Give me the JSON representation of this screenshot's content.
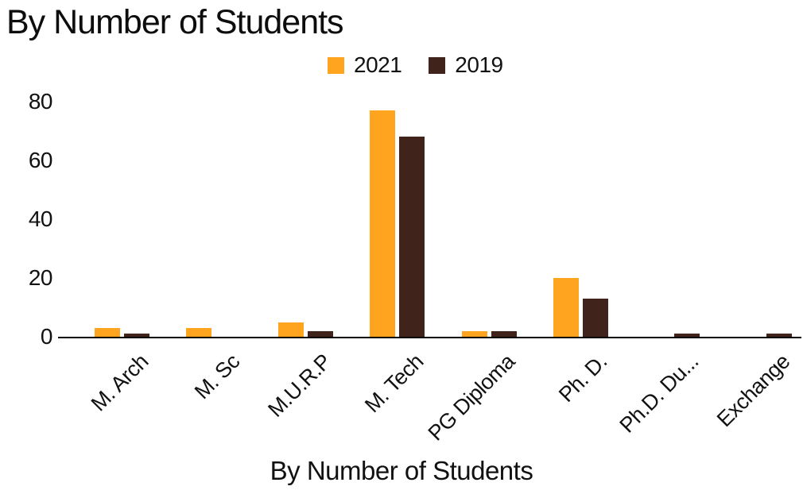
{
  "title": "By Number of Students",
  "legend": {
    "items": [
      {
        "label": "2021",
        "color": "#FFA41E"
      },
      {
        "label": "2019",
        "color": "#40231A"
      }
    ]
  },
  "x_axis_title": "By Number of Students",
  "chart_data": {
    "type": "bar",
    "title": "By Number of Students",
    "xlabel": "By Number of Students",
    "ylabel": "",
    "categories": [
      "M. Arch",
      "M. Sc",
      "M.U.R.P",
      "M. Tech",
      "PG Diploma",
      "Ph. D.",
      "Ph.D. Du...",
      "Exchange"
    ],
    "series": [
      {
        "name": "2021",
        "color": "#FFA41E",
        "values": [
          3,
          3,
          5,
          77,
          2,
          20,
          0,
          0
        ]
      },
      {
        "name": "2019",
        "color": "#40231A",
        "values": [
          1,
          0,
          2,
          68,
          2,
          13,
          1,
          1
        ]
      }
    ],
    "ylim": [
      0,
      80
    ],
    "yticks": [
      0,
      20,
      40,
      60,
      80
    ],
    "grid": false,
    "legend_position": "top-center",
    "background": "#ffffff"
  }
}
